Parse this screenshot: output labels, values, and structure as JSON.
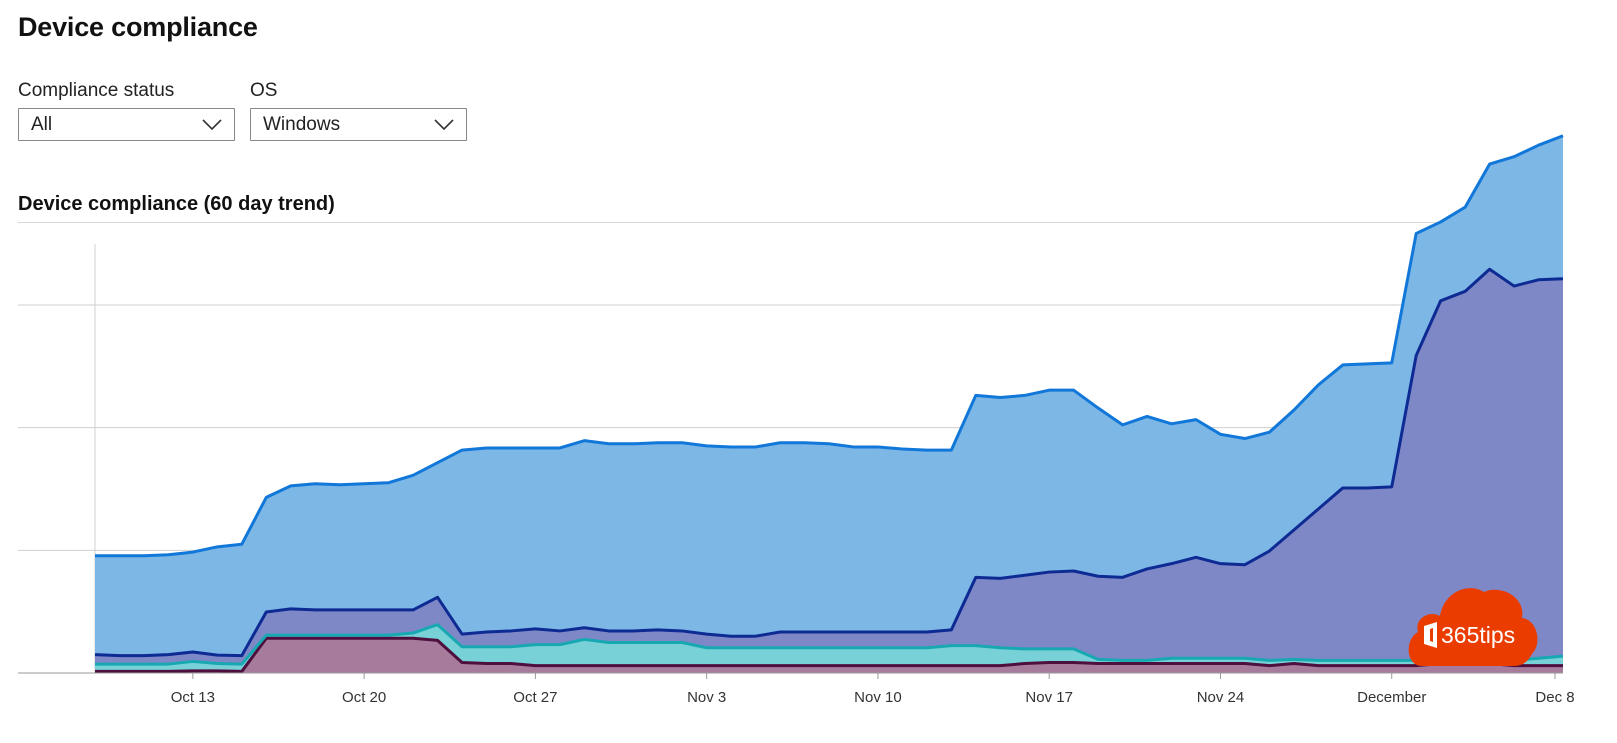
{
  "page_title": "Device compliance",
  "filters": [
    {
      "label": "Compliance status",
      "value": "All",
      "icon": "chevron-down-icon"
    },
    {
      "label": "OS",
      "value": "Windows",
      "icon": "chevron-down-icon"
    }
  ],
  "section_title": "Device compliance (60 day trend)",
  "watermark": {
    "text": "365tips",
    "color": "#eb3c00"
  },
  "chart_data": {
    "type": "area",
    "stacked": true,
    "title": "",
    "xlabel": "",
    "ylabel": "",
    "y_tick_labels_shown": false,
    "x_tick_labels": [
      "Oct 13",
      "Oct 20",
      "Oct 27",
      "Nov 3",
      "Nov 10",
      "Nov 17",
      "Nov 24",
      "December",
      "Dec 8"
    ],
    "x_start": "Oct 9",
    "x_end": "Dec 9",
    "grid": true,
    "colors": {
      "top_fill": "#7cb7e6",
      "top_line": "#1177d9",
      "purple_fill": "#7f88c7",
      "purple_line": "#0e2a93",
      "teal_fill": "#78d1d6",
      "teal_line": "#17a8b2",
      "pink_fill": "#a67b9c",
      "pink_line": "#4e0f3f",
      "base_fill": "#b7abe0"
    },
    "series_bottom_to_top": [
      {
        "values": [
          0.15,
          0.15,
          0.15,
          0.15,
          0.2,
          0.2,
          0.15,
          3.3,
          3.3,
          3.3,
          3.3,
          3.3,
          3.3,
          3.3,
          3.1,
          1,
          0.9,
          0.9,
          0.7,
          0.7,
          0.7,
          0.7,
          0.7,
          0.7,
          0.7,
          0.7,
          0.7,
          0.7,
          0.7,
          0.7,
          0.7,
          0.7,
          0.7,
          0.7,
          0.7,
          0.7,
          0.7,
          0.7,
          0.9,
          1,
          1,
          0.9,
          0.9,
          0.9,
          0.9,
          0.9,
          0.9,
          0.9,
          0.7,
          0.9,
          0.7,
          0.7,
          0.7,
          0.7,
          0.7,
          0.9,
          0.9,
          0.9,
          0.7,
          0.7,
          0.7
        ]
      },
      {
        "values": [
          0.7,
          0.7,
          0.7,
          0.7,
          0.9,
          0.7,
          0.7,
          0.3,
          0.3,
          0.3,
          0.3,
          0.3,
          0.3,
          0.5,
          1.5,
          1.5,
          1.6,
          1.6,
          2,
          2,
          2.5,
          2.2,
          2.2,
          2.2,
          2.2,
          1.7,
          1.7,
          1.7,
          1.7,
          1.7,
          1.7,
          1.7,
          1.7,
          1.7,
          1.7,
          1.9,
          1.9,
          1.7,
          1.4,
          1.3,
          1.3,
          0.4,
          0.3,
          0.3,
          0.5,
          0.5,
          0.5,
          0.5,
          0.5,
          0.4,
          0.5,
          0.5,
          0.5,
          0.5,
          0.5,
          0.5,
          0.4,
          0.5,
          0.5,
          0.7,
          0.9
        ]
      },
      {
        "values": [
          0.9,
          0.8,
          0.8,
          0.9,
          0.9,
          0.8,
          0.8,
          2.2,
          2.5,
          2.4,
          2.4,
          2.4,
          2.4,
          2.2,
          2.6,
          1.2,
          1.4,
          1.5,
          1.5,
          1.3,
          1.1,
          1.1,
          1.1,
          1.2,
          1.1,
          1.3,
          1.1,
          1.1,
          1.5,
          1.5,
          1.5,
          1.5,
          1.5,
          1.5,
          1.5,
          1.5,
          6.5,
          6.6,
          7,
          7.3,
          7.4,
          7.9,
          7.9,
          8.7,
          9,
          9.6,
          9,
          8.9,
          10.4,
          12.3,
          14.4,
          16.4,
          16.4,
          16.5,
          29,
          34,
          35,
          37,
          35.6,
          36,
          35.9
        ]
      },
      {
        "values": [
          9.4,
          9.5,
          9.5,
          9.5,
          9.5,
          10.3,
          10.6,
          10.9,
          11.7,
          12,
          11.9,
          12,
          12.1,
          12.8,
          12.8,
          17.5,
          17.5,
          17.4,
          17.2,
          17.4,
          17.8,
          17.8,
          17.8,
          17.8,
          17.9,
          17.9,
          18,
          18,
          18,
          18,
          17.9,
          17.6,
          17.6,
          17.4,
          17.3,
          17.1,
          17.3,
          17.2,
          17.1,
          17.3,
          17.2,
          16,
          14.5,
          14.5,
          13.3,
          13.1,
          12.3,
          12,
          11.3,
          11.4,
          11.8,
          11.7,
          11.8,
          11.8,
          11.6,
          7.5,
          8,
          10,
          12.3,
          12.8,
          13.6
        ]
      }
    ],
    "ylim": [
      0,
      35
    ]
  }
}
